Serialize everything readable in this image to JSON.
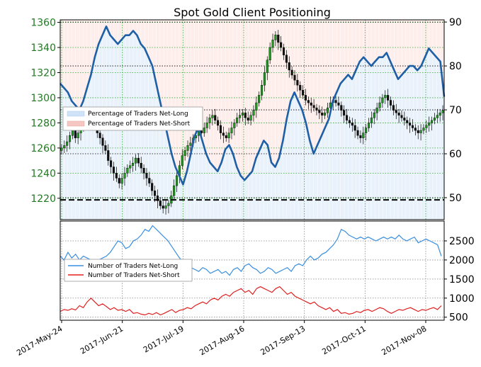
{
  "chart_data": {
    "title": "Spot Gold Client Positioning",
    "type": "line",
    "x_ticks": [
      "2017-May-24",
      "2017-Jun-21",
      "2017-Jul-19",
      "2017-Aug-16",
      "2017-Sep-13",
      "2017-Oct-11",
      "2017-Nov-08"
    ],
    "top_panel": {
      "left_axis": {
        "ticks": [
          1220,
          1240,
          1260,
          1280,
          1300,
          1320,
          1340,
          1360
        ],
        "ylim": [
          1203,
          1362
        ]
      },
      "right_axis": {
        "ticks": [
          50,
          60,
          70,
          80,
          90
        ],
        "ylim": [
          45,
          90.5
        ]
      },
      "legend": [
        "Percentage of Traders Net-Long",
        "Percentage of Traders Net-Short"
      ],
      "reference_line": 49.5,
      "pct_net_long": [
        76,
        75,
        74,
        72,
        71,
        70,
        72,
        75,
        78,
        82,
        85,
        87,
        89,
        87,
        86,
        85,
        86,
        87,
        87,
        88,
        87,
        85,
        84,
        82,
        80,
        76,
        72,
        68,
        64,
        60,
        57,
        55,
        53,
        56,
        60,
        64,
        66,
        63,
        60,
        58,
        57,
        56,
        58,
        61,
        62,
        60,
        57,
        55,
        54,
        55,
        56,
        59,
        61,
        63,
        62,
        58,
        57,
        59,
        63,
        68,
        72,
        74,
        72,
        70,
        67,
        63,
        60,
        62,
        64,
        66,
        68,
        72,
        74,
        76,
        77,
        78,
        77,
        79,
        81,
        82,
        81,
        80,
        81,
        82,
        82,
        83,
        81,
        79,
        77,
        78,
        79,
        80,
        80,
        79,
        80,
        82,
        84,
        83,
        82,
        81,
        73
      ],
      "gold_price": [
        1260,
        1262,
        1265,
        1270,
        1275,
        1268,
        1272,
        1276,
        1280,
        1284,
        1286,
        1282,
        1278,
        1272,
        1268,
        1262,
        1258,
        1250,
        1245,
        1240,
        1236,
        1232,
        1236,
        1240,
        1244,
        1246,
        1248,
        1252,
        1248,
        1244,
        1240,
        1236,
        1232,
        1226,
        1222,
        1218,
        1214,
        1212,
        1214,
        1216,
        1222,
        1230,
        1238,
        1246,
        1254,
        1258,
        1262,
        1264,
        1268,
        1270,
        1274,
        1272,
        1276,
        1280,
        1284,
        1286,
        1282,
        1278,
        1272,
        1270,
        1268,
        1272,
        1276,
        1280,
        1284,
        1286,
        1288,
        1284,
        1282,
        1286,
        1290,
        1296,
        1302,
        1310,
        1320,
        1330,
        1340,
        1346,
        1350,
        1344,
        1340,
        1334,
        1328,
        1322,
        1318,
        1314,
        1310,
        1306,
        1302,
        1298,
        1296,
        1294,
        1292,
        1290,
        1288,
        1286,
        1288,
        1292,
        1296,
        1298,
        1296,
        1294,
        1290,
        1286,
        1282,
        1280,
        1278,
        1274,
        1270,
        1268,
        1272,
        1276,
        1280,
        1284,
        1288,
        1292,
        1296,
        1300,
        1302,
        1298,
        1294,
        1290,
        1288,
        1286,
        1284,
        1282,
        1280,
        1278,
        1276,
        1274,
        1272,
        1274,
        1276,
        1278,
        1280,
        1282,
        1284,
        1286,
        1288,
        1290
      ]
    },
    "bottom_panel": {
      "right_axis": {
        "ticks": [
          500,
          1000,
          1500,
          2000,
          2500
        ],
        "ylim": [
          420,
          3020
        ]
      },
      "legend": [
        "Number of Traders Net-Long",
        "Number of Traders Net-Short"
      ],
      "net_long": [
        2100,
        2000,
        2200,
        2050,
        2150,
        2000,
        2100,
        2050,
        2000,
        1950,
        2000,
        2050,
        2100,
        2200,
        2350,
        2500,
        2450,
        2300,
        2350,
        2500,
        2550,
        2650,
        2800,
        2750,
        2900,
        2800,
        2700,
        2600,
        2500,
        2350,
        2200,
        2050,
        1950,
        1850,
        1800,
        1750,
        1700,
        1800,
        1750,
        1650,
        1700,
        1750,
        1650,
        1700,
        1600,
        1750,
        1800,
        1700,
        1850,
        1900,
        1800,
        1750,
        1650,
        1700,
        1800,
        1750,
        1650,
        1700,
        1750,
        1800,
        1700,
        1850,
        1900,
        1850,
        2000,
        2100,
        2000,
        2050,
        2150,
        2200,
        2300,
        2400,
        2550,
        2800,
        2750,
        2650,
        2600,
        2550,
        2600,
        2550,
        2600,
        2550,
        2500,
        2550,
        2600,
        2550,
        2600,
        2550,
        2650,
        2550,
        2500,
        2550,
        2600,
        2450,
        2500,
        2550,
        2500,
        2450,
        2400,
        2100
      ],
      "net_short": [
        650,
        700,
        680,
        720,
        690,
        800,
        750,
        900,
        1000,
        900,
        800,
        850,
        780,
        700,
        750,
        680,
        700,
        650,
        700,
        600,
        620,
        580,
        560,
        600,
        570,
        620,
        560,
        600,
        650,
        700,
        620,
        680,
        700,
        750,
        720,
        800,
        850,
        900,
        850,
        950,
        1000,
        950,
        1050,
        1100,
        1050,
        1150,
        1200,
        1250,
        1150,
        1200,
        1100,
        1250,
        1300,
        1250,
        1200,
        1150,
        1250,
        1300,
        1200,
        1100,
        1150,
        1050,
        1000,
        950,
        900,
        850,
        900,
        800,
        750,
        700,
        750,
        650,
        700,
        600,
        620,
        580,
        600,
        650,
        620,
        680,
        700,
        650,
        700,
        750,
        720,
        650,
        600,
        650,
        700,
        680,
        720,
        750,
        700,
        650,
        700,
        680,
        720,
        750,
        700,
        800
      ]
    }
  }
}
